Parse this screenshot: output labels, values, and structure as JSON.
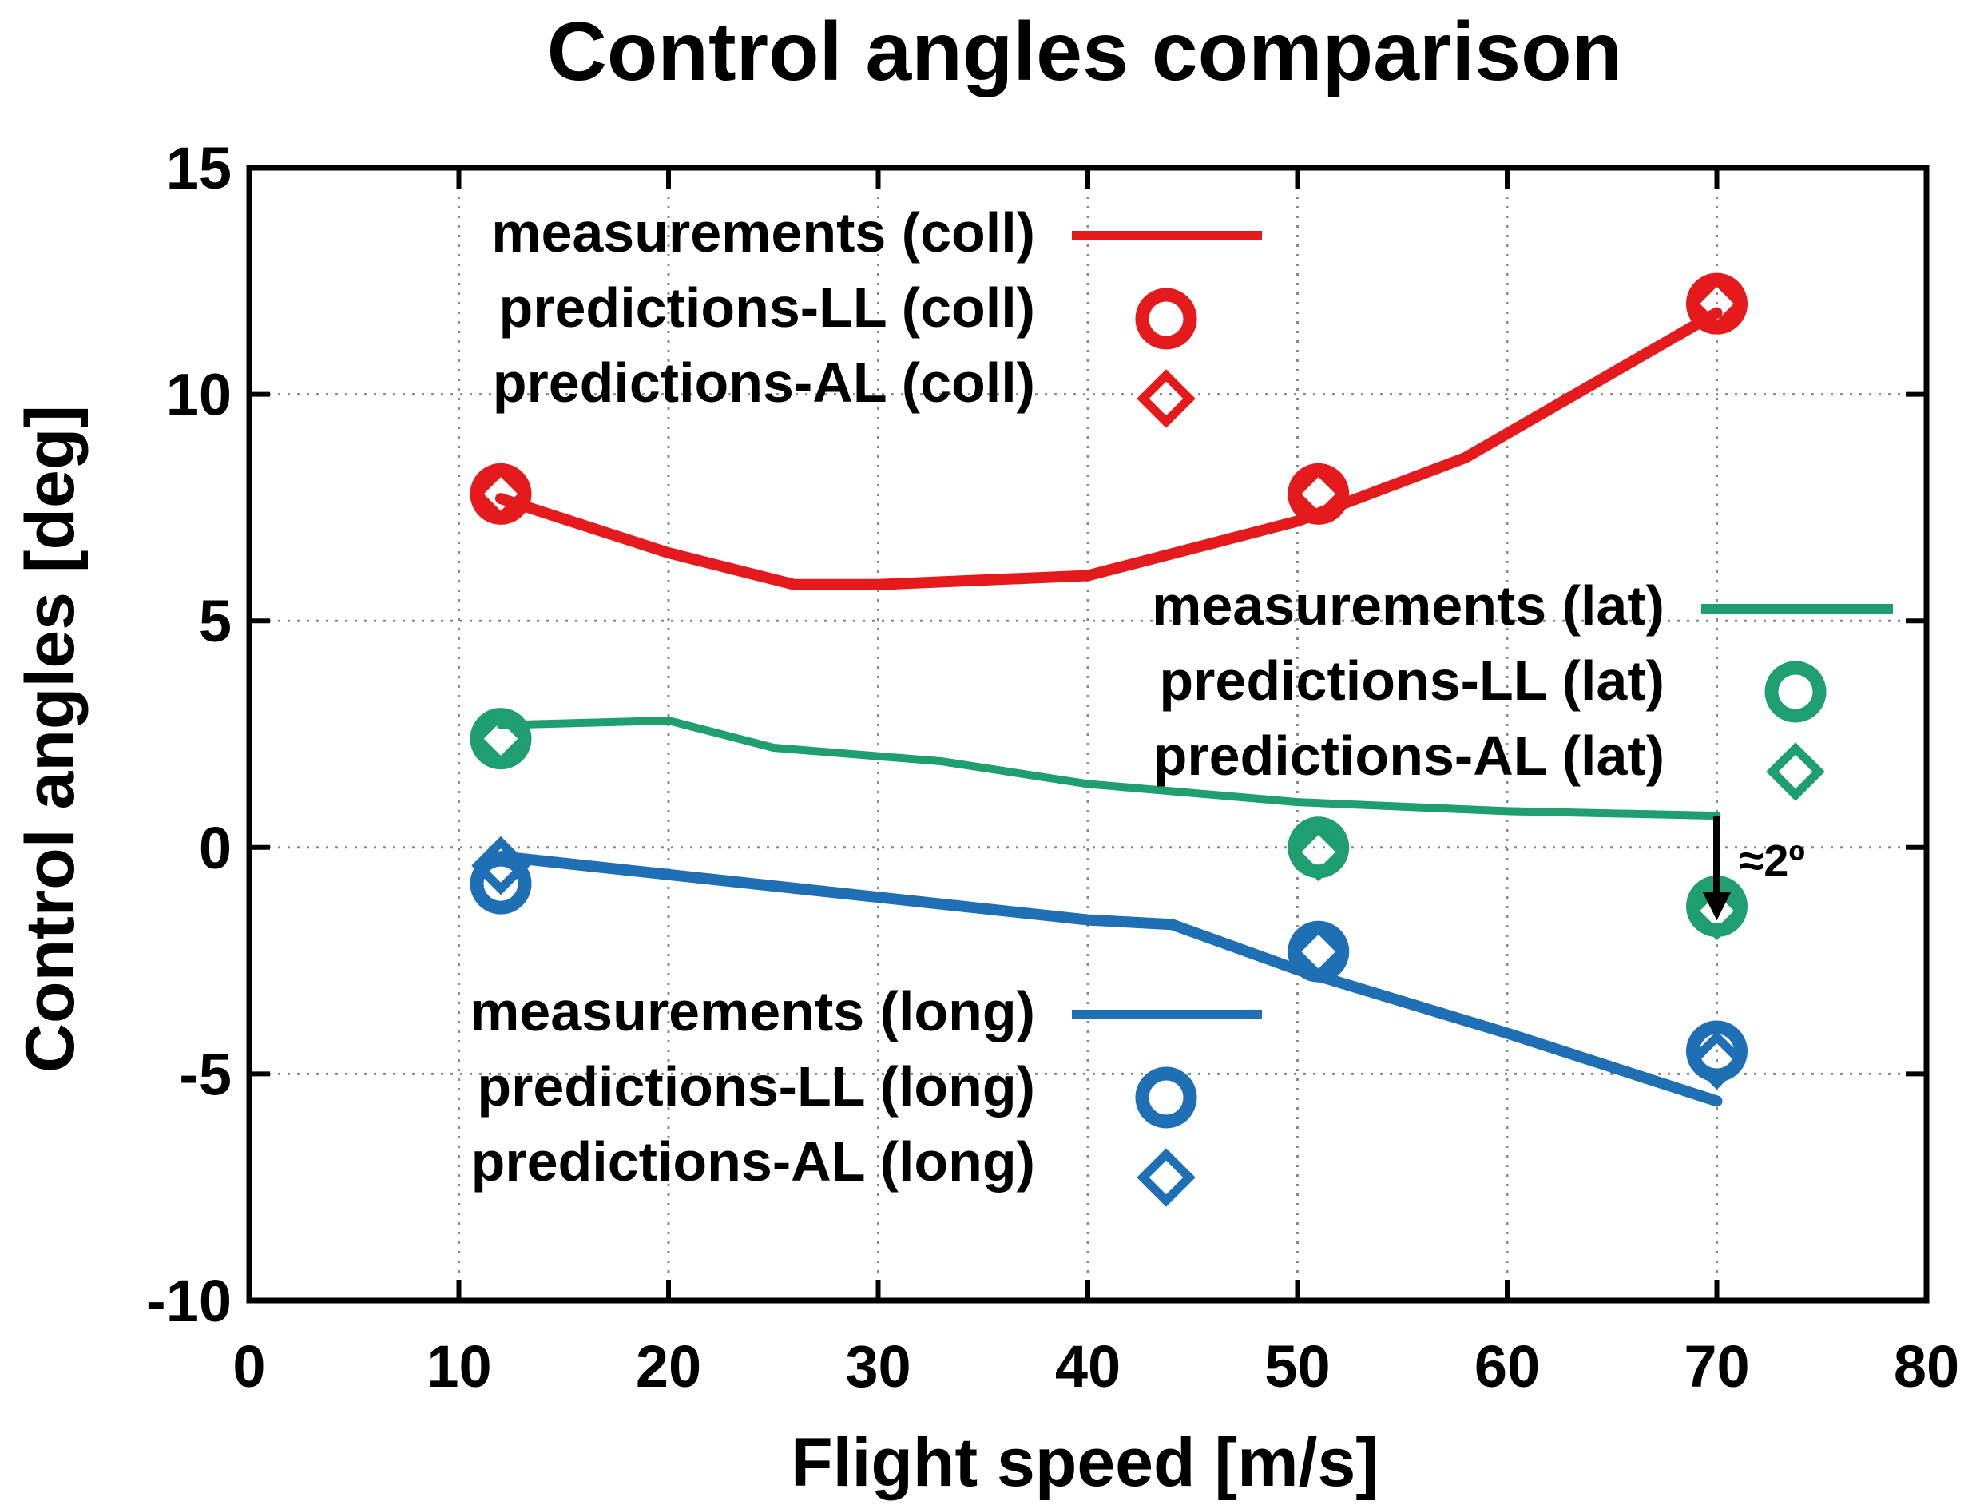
{
  "chart_data": {
    "type": "line",
    "title": "Control angles comparison",
    "xlabel": "Flight speed [m/s]",
    "ylabel": "Control angles [deg]",
    "xlim": [
      0,
      80
    ],
    "ylim": [
      -10,
      15
    ],
    "xticks": [
      0,
      10,
      20,
      30,
      40,
      50,
      60,
      70,
      80
    ],
    "yticks": [
      -10,
      -5,
      0,
      5,
      10,
      15
    ],
    "grid": true,
    "series": [
      {
        "group": "coll",
        "color": "#e41a1c",
        "measurements": {
          "name": "measurements (coll)",
          "x": [
            12,
            20,
            26,
            30,
            40,
            50,
            58,
            70
          ],
          "y": [
            7.7,
            6.5,
            5.8,
            5.8,
            6.0,
            7.2,
            8.6,
            11.8
          ]
        },
        "predictions_LL": {
          "name": "predictions-LL (coll)",
          "x": [
            12,
            51,
            70
          ],
          "y": [
            7.8,
            7.8,
            12.0
          ]
        },
        "predictions_AL": {
          "name": "predictions-AL (coll)",
          "x": [
            12,
            51,
            70
          ],
          "y": [
            7.8,
            7.8,
            12.0
          ]
        }
      },
      {
        "group": "lat",
        "color": "#1f9e70",
        "measurements": {
          "name": "measurements (lat)",
          "x": [
            12,
            20,
            25,
            33,
            40,
            50,
            60,
            70
          ],
          "y": [
            2.7,
            2.8,
            2.2,
            1.9,
            1.4,
            1.0,
            0.8,
            0.7
          ]
        },
        "predictions_LL": {
          "name": "predictions-LL (lat)",
          "x": [
            12,
            51,
            70
          ],
          "y": [
            2.4,
            0.0,
            -1.3
          ]
        },
        "predictions_AL": {
          "name": "predictions-AL (lat)",
          "x": [
            12,
            51,
            70
          ],
          "y": [
            2.4,
            -0.1,
            -1.4
          ]
        }
      },
      {
        "group": "long",
        "color": "#1f6fb4",
        "measurements": {
          "name": "measurements (long)",
          "x": [
            12,
            20,
            30,
            40,
            44,
            50,
            60,
            70
          ],
          "y": [
            -0.2,
            -0.6,
            -1.1,
            -1.6,
            -1.7,
            -2.7,
            -4.1,
            -5.6
          ]
        },
        "predictions_LL": {
          "name": "predictions-LL (long)",
          "x": [
            12,
            51,
            70
          ],
          "y": [
            -0.8,
            -2.3,
            -4.5
          ]
        },
        "predictions_AL": {
          "name": "predictions-AL (long)",
          "x": [
            12,
            51,
            70
          ],
          "y": [
            -0.4,
            -2.3,
            -4.7
          ]
        }
      }
    ],
    "annotations": [
      {
        "text": "≈2º",
        "arrow_from": [
          70,
          0.7
        ],
        "arrow_to": [
          70,
          -1.4
        ]
      }
    ]
  }
}
